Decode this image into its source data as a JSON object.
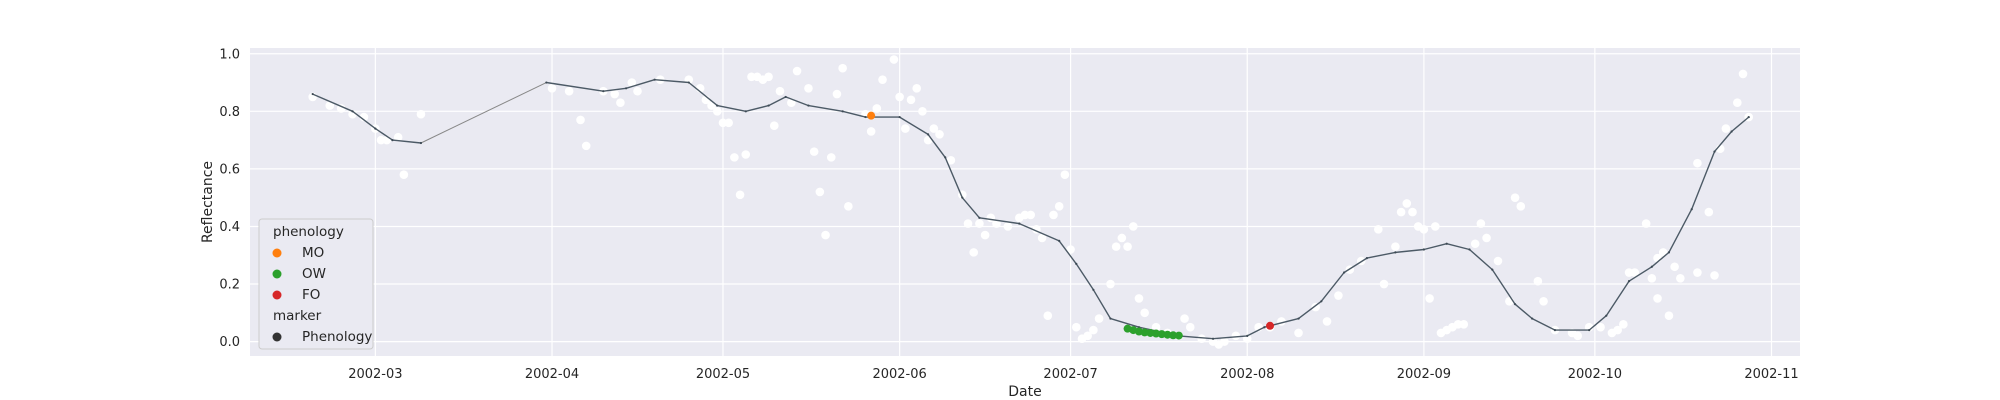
{
  "chart_data": {
    "type": "scatter",
    "xlabel": "Date",
    "ylabel": "Reflectance",
    "xlim": [
      "2002-02-07",
      "2002-11-06"
    ],
    "ylim": [
      -0.05,
      1.02
    ],
    "x_ticks": [
      "2002-03-01",
      "2002-04-01",
      "2002-05-01",
      "2002-06-01",
      "2002-07-01",
      "2002-08-01",
      "2002-09-01",
      "2002-10-01",
      "2002-11-01"
    ],
    "x_tick_labels": [
      "2002-03",
      "2002-04",
      "2002-05",
      "2002-06",
      "2002-07",
      "2002-08",
      "2002-09",
      "2002-10",
      "2002-11"
    ],
    "y_ticks": [
      0.0,
      0.2,
      0.4,
      0.6,
      0.8,
      1.0
    ],
    "y_tick_labels": [
      "0.0",
      "0.2",
      "0.4",
      "0.6",
      "0.8",
      "1.0"
    ],
    "grid": true,
    "legend_position": "lower-left",
    "legend": {
      "title_1": "phenology",
      "items": [
        {
          "label": "MO",
          "color": "#ff7f0e"
        },
        {
          "label": "OW",
          "color": "#2ca02c"
        },
        {
          "label": "FO",
          "color": "#d62728"
        }
      ],
      "title_2": "marker",
      "marker_item": {
        "label": "Phenology",
        "color": "#333333"
      }
    },
    "colors": {
      "background": "#eaeaf2",
      "grid": "#ffffff",
      "observations": "#ffffff",
      "smooth_line": "#4c5a66",
      "gap_line": "#888888"
    },
    "observations": [
      [
        "2002-02-18",
        0.85
      ],
      [
        "2002-02-21",
        0.82
      ],
      [
        "2002-02-23",
        0.81
      ],
      [
        "2002-02-25",
        0.79
      ],
      [
        "2002-02-27",
        0.78
      ],
      [
        "2002-03-01",
        0.74
      ],
      [
        "2002-03-02",
        0.7
      ],
      [
        "2002-03-03",
        0.7
      ],
      [
        "2002-03-05",
        0.71
      ],
      [
        "2002-03-06",
        0.58
      ],
      [
        "2002-03-09",
        0.79
      ],
      [
        "2002-04-01",
        0.88
      ],
      [
        "2002-04-04",
        0.87
      ],
      [
        "2002-04-06",
        0.77
      ],
      [
        "2002-04-07",
        0.68
      ],
      [
        "2002-04-10",
        0.87
      ],
      [
        "2002-04-12",
        0.86
      ],
      [
        "2002-04-13",
        0.83
      ],
      [
        "2002-04-15",
        0.9
      ],
      [
        "2002-04-16",
        0.87
      ],
      [
        "2002-04-20",
        0.91
      ],
      [
        "2002-04-25",
        0.91
      ],
      [
        "2002-04-27",
        0.88
      ],
      [
        "2002-04-28",
        0.84
      ],
      [
        "2002-04-29",
        0.82
      ],
      [
        "2002-04-30",
        0.8
      ],
      [
        "2002-05-01",
        0.76
      ],
      [
        "2002-05-02",
        0.76
      ],
      [
        "2002-05-03",
        0.64
      ],
      [
        "2002-05-04",
        0.51
      ],
      [
        "2002-05-05",
        0.65
      ],
      [
        "2002-05-06",
        0.92
      ],
      [
        "2002-05-07",
        0.92
      ],
      [
        "2002-05-08",
        0.91
      ],
      [
        "2002-05-09",
        0.92
      ],
      [
        "2002-05-10",
        0.75
      ],
      [
        "2002-05-11",
        0.87
      ],
      [
        "2002-05-13",
        0.83
      ],
      [
        "2002-05-14",
        0.94
      ],
      [
        "2002-05-16",
        0.88
      ],
      [
        "2002-05-17",
        0.66
      ],
      [
        "2002-05-18",
        0.52
      ],
      [
        "2002-05-19",
        0.37
      ],
      [
        "2002-05-20",
        0.64
      ],
      [
        "2002-05-21",
        0.86
      ],
      [
        "2002-05-22",
        0.95
      ],
      [
        "2002-05-23",
        0.47
      ],
      [
        "2002-05-26",
        0.79
      ],
      [
        "2002-05-27",
        0.73
      ],
      [
        "2002-05-28",
        0.81
      ],
      [
        "2002-05-29",
        0.91
      ],
      [
        "2002-05-31",
        0.98
      ],
      [
        "2002-06-01",
        0.85
      ],
      [
        "2002-06-02",
        0.74
      ],
      [
        "2002-06-03",
        0.84
      ],
      [
        "2002-06-04",
        0.88
      ],
      [
        "2002-06-05",
        0.8
      ],
      [
        "2002-06-06",
        0.7
      ],
      [
        "2002-06-07",
        0.74
      ],
      [
        "2002-06-08",
        0.72
      ],
      [
        "2002-06-10",
        0.63
      ],
      [
        "2002-06-12",
        0.51
      ],
      [
        "2002-06-13",
        0.41
      ],
      [
        "2002-06-14",
        0.31
      ],
      [
        "2002-06-15",
        0.41
      ],
      [
        "2002-06-16",
        0.37
      ],
      [
        "2002-06-17",
        0.43
      ],
      [
        "2002-06-18",
        0.41
      ],
      [
        "2002-06-20",
        0.4
      ],
      [
        "2002-06-22",
        0.43
      ],
      [
        "2002-06-23",
        0.44
      ],
      [
        "2002-06-24",
        0.44
      ],
      [
        "2002-06-25",
        0.39
      ],
      [
        "2002-06-26",
        0.36
      ],
      [
        "2002-06-27",
        0.09
      ],
      [
        "2002-06-28",
        0.44
      ],
      [
        "2002-06-29",
        0.47
      ],
      [
        "2002-06-30",
        0.58
      ],
      [
        "2002-07-01",
        0.32
      ],
      [
        "2002-07-02",
        0.05
      ],
      [
        "2002-07-03",
        0.01
      ],
      [
        "2002-07-04",
        0.02
      ],
      [
        "2002-07-05",
        0.04
      ],
      [
        "2002-07-06",
        0.08
      ],
      [
        "2002-07-08",
        0.2
      ],
      [
        "2002-07-09",
        0.33
      ],
      [
        "2002-07-10",
        0.36
      ],
      [
        "2002-07-11",
        0.33
      ],
      [
        "2002-07-12",
        0.4
      ],
      [
        "2002-07-13",
        0.15
      ],
      [
        "2002-07-14",
        0.1
      ],
      [
        "2002-07-16",
        0.05
      ],
      [
        "2002-07-18",
        0.03
      ],
      [
        "2002-07-20",
        0.02
      ],
      [
        "2002-07-21",
        0.08
      ],
      [
        "2002-07-22",
        0.05
      ],
      [
        "2002-07-24",
        0.01
      ],
      [
        "2002-07-26",
        0.0
      ],
      [
        "2002-07-27",
        -0.01
      ],
      [
        "2002-07-28",
        0.0
      ],
      [
        "2002-07-30",
        0.02
      ],
      [
        "2002-08-01",
        0.01
      ],
      [
        "2002-08-03",
        0.05
      ],
      [
        "2002-08-05",
        0.05
      ],
      [
        "2002-08-07",
        0.07
      ],
      [
        "2002-08-10",
        0.03
      ],
      [
        "2002-08-13",
        0.12
      ],
      [
        "2002-08-15",
        0.07
      ],
      [
        "2002-08-17",
        0.16
      ],
      [
        "2002-08-19",
        0.25
      ],
      [
        "2002-08-21",
        0.28
      ],
      [
        "2002-08-24",
        0.39
      ],
      [
        "2002-08-25",
        0.2
      ],
      [
        "2002-08-27",
        0.33
      ],
      [
        "2002-08-28",
        0.45
      ],
      [
        "2002-08-29",
        0.48
      ],
      [
        "2002-08-30",
        0.45
      ],
      [
        "2002-08-31",
        0.4
      ],
      [
        "2002-09-01",
        0.39
      ],
      [
        "2002-09-02",
        0.15
      ],
      [
        "2002-09-03",
        0.4
      ],
      [
        "2002-09-04",
        0.03
      ],
      [
        "2002-09-05",
        0.04
      ],
      [
        "2002-09-06",
        0.05
      ],
      [
        "2002-09-07",
        0.06
      ],
      [
        "2002-09-08",
        0.06
      ],
      [
        "2002-09-10",
        0.34
      ],
      [
        "2002-09-11",
        0.41
      ],
      [
        "2002-09-12",
        0.36
      ],
      [
        "2002-09-14",
        0.28
      ],
      [
        "2002-09-16",
        0.14
      ],
      [
        "2002-09-17",
        0.5
      ],
      [
        "2002-09-18",
        0.47
      ],
      [
        "2002-09-21",
        0.21
      ],
      [
        "2002-09-22",
        0.14
      ],
      [
        "2002-09-24",
        0.04
      ],
      [
        "2002-09-27",
        0.03
      ],
      [
        "2002-09-28",
        0.02
      ],
      [
        "2002-09-30",
        0.05
      ],
      [
        "2002-10-02",
        0.05
      ],
      [
        "2002-10-04",
        0.03
      ],
      [
        "2002-10-05",
        0.04
      ],
      [
        "2002-10-06",
        0.06
      ],
      [
        "2002-10-07",
        0.24
      ],
      [
        "2002-10-08",
        0.24
      ],
      [
        "2002-10-10",
        0.41
      ],
      [
        "2002-10-11",
        0.22
      ],
      [
        "2002-10-12",
        0.29
      ],
      [
        "2002-10-12",
        0.15
      ],
      [
        "2002-10-13",
        0.31
      ],
      [
        "2002-10-14",
        0.09
      ],
      [
        "2002-10-15",
        0.26
      ],
      [
        "2002-10-16",
        0.22
      ],
      [
        "2002-10-19",
        0.24
      ],
      [
        "2002-10-19",
        0.62
      ],
      [
        "2002-10-21",
        0.45
      ],
      [
        "2002-10-22",
        0.23
      ],
      [
        "2002-10-23",
        0.67
      ],
      [
        "2002-10-24",
        0.74
      ],
      [
        "2002-10-26",
        0.83
      ],
      [
        "2002-10-27",
        0.93
      ],
      [
        "2002-10-28",
        0.78
      ]
    ],
    "smooth_curve": [
      [
        "2002-02-18",
        0.86
      ],
      [
        "2002-02-25",
        0.8
      ],
      [
        "2002-03-01",
        0.74
      ],
      [
        "2002-03-04",
        0.7
      ],
      [
        "2002-03-09",
        0.69
      ],
      [
        "2002-03-31",
        0.9
      ],
      [
        "2002-04-10",
        0.87
      ],
      [
        "2002-04-14",
        0.88
      ],
      [
        "2002-04-19",
        0.91
      ],
      [
        "2002-04-25",
        0.9
      ],
      [
        "2002-04-30",
        0.82
      ],
      [
        "2002-05-05",
        0.8
      ],
      [
        "2002-05-09",
        0.82
      ],
      [
        "2002-05-12",
        0.85
      ],
      [
        "2002-05-16",
        0.82
      ],
      [
        "2002-05-22",
        0.8
      ],
      [
        "2002-05-26",
        0.78
      ],
      [
        "2002-06-01",
        0.78
      ],
      [
        "2002-06-06",
        0.72
      ],
      [
        "2002-06-09",
        0.64
      ],
      [
        "2002-06-12",
        0.5
      ],
      [
        "2002-06-15",
        0.43
      ],
      [
        "2002-06-22",
        0.41
      ],
      [
        "2002-06-29",
        0.35
      ],
      [
        "2002-07-02",
        0.27
      ],
      [
        "2002-07-05",
        0.18
      ],
      [
        "2002-07-08",
        0.08
      ],
      [
        "2002-07-13",
        0.05
      ],
      [
        "2002-07-20",
        0.02
      ],
      [
        "2002-07-26",
        0.01
      ],
      [
        "2002-08-01",
        0.02
      ],
      [
        "2002-08-04",
        0.05
      ],
      [
        "2002-08-10",
        0.08
      ],
      [
        "2002-08-14",
        0.14
      ],
      [
        "2002-08-18",
        0.24
      ],
      [
        "2002-08-22",
        0.29
      ],
      [
        "2002-08-27",
        0.31
      ],
      [
        "2002-09-01",
        0.32
      ],
      [
        "2002-09-05",
        0.34
      ],
      [
        "2002-09-09",
        0.32
      ],
      [
        "2002-09-13",
        0.25
      ],
      [
        "2002-09-17",
        0.13
      ],
      [
        "2002-09-20",
        0.08
      ],
      [
        "2002-09-24",
        0.04
      ],
      [
        "2002-09-30",
        0.04
      ],
      [
        "2002-10-03",
        0.09
      ],
      [
        "2002-10-07",
        0.21
      ],
      [
        "2002-10-11",
        0.26
      ],
      [
        "2002-10-14",
        0.31
      ],
      [
        "2002-10-18",
        0.46
      ],
      [
        "2002-10-22",
        0.66
      ],
      [
        "2002-10-25",
        0.73
      ],
      [
        "2002-10-28",
        0.78
      ]
    ],
    "gap_segments": [
      [
        [
          "2002-03-09",
          0.69
        ],
        [
          "2002-03-31",
          0.9
        ]
      ]
    ],
    "phenology_points": [
      {
        "label": "MO",
        "x": "2002-05-27",
        "y": 0.785
      },
      {
        "label": "OW",
        "x": "2002-07-11",
        "y": 0.045
      },
      {
        "label": "OW",
        "x": "2002-07-12",
        "y": 0.04
      },
      {
        "label": "OW",
        "x": "2002-07-13",
        "y": 0.035
      },
      {
        "label": "OW",
        "x": "2002-07-14",
        "y": 0.032
      },
      {
        "label": "OW",
        "x": "2002-07-15",
        "y": 0.03
      },
      {
        "label": "OW",
        "x": "2002-07-16",
        "y": 0.028
      },
      {
        "label": "OW",
        "x": "2002-07-17",
        "y": 0.026
      },
      {
        "label": "OW",
        "x": "2002-07-18",
        "y": 0.024
      },
      {
        "label": "OW",
        "x": "2002-07-19",
        "y": 0.022
      },
      {
        "label": "OW",
        "x": "2002-07-20",
        "y": 0.021
      },
      {
        "label": "FO",
        "x": "2002-08-05",
        "y": 0.055
      }
    ]
  }
}
